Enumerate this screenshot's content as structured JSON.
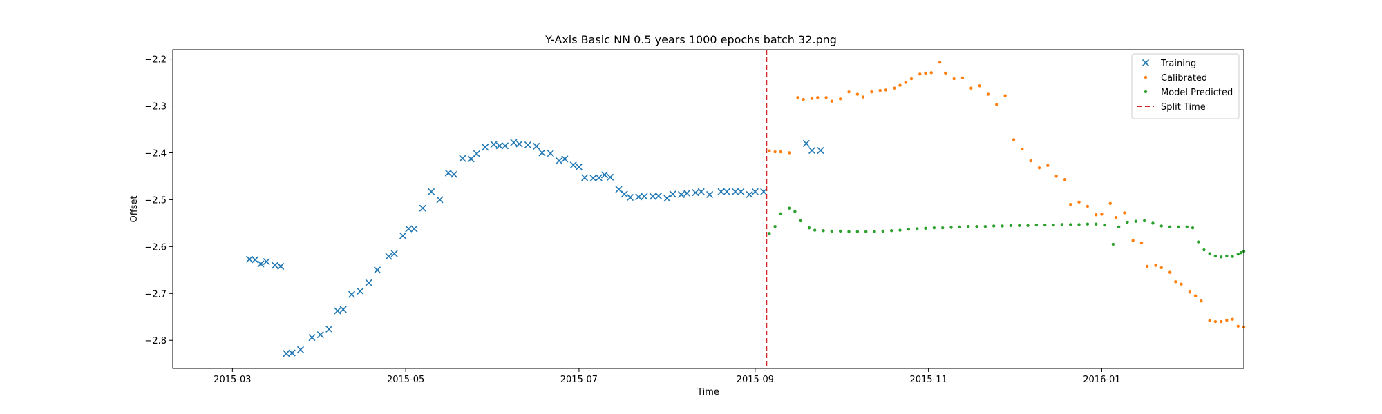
{
  "chart_data": {
    "type": "scatter",
    "title": "Y-Axis Basic NN 0.5 years 1000 epochs batch 32.png",
    "xlabel": "Time",
    "ylabel": "Offset",
    "xlim": [
      "2015-02-08",
      "2016-02-20"
    ],
    "ylim": [
      -2.86,
      -2.18
    ],
    "x_ticks": [
      "2015-03-01",
      "2015-05-01",
      "2015-07-01",
      "2015-09-01",
      "2015-11-01",
      "2016-01-01"
    ],
    "x_tick_labels": [
      "2015-03",
      "2015-05",
      "2015-07",
      "2015-09",
      "2015-11",
      "2016-01"
    ],
    "y_ticks": [
      -2.8,
      -2.7,
      -2.6,
      -2.5,
      -2.4,
      -2.3,
      -2.2
    ],
    "y_tick_labels": [
      "−2.8",
      "−2.7",
      "−2.6",
      "−2.5",
      "−2.4",
      "−2.3",
      "−2.2"
    ],
    "grid": false,
    "legend_position": "top-right",
    "split_time": "2015-09-05",
    "series": [
      {
        "name": "Training",
        "marker": "x",
        "color": "#1f77b4",
        "points": [
          [
            "2015-03-07",
            -2.627
          ],
          [
            "2015-03-09",
            -2.628
          ],
          [
            "2015-03-11",
            -2.637
          ],
          [
            "2015-03-13",
            -2.632
          ],
          [
            "2015-03-16",
            -2.64
          ],
          [
            "2015-03-18",
            -2.642
          ],
          [
            "2015-03-20",
            -2.828
          ],
          [
            "2015-03-22",
            -2.827
          ],
          [
            "2015-03-25",
            -2.82
          ],
          [
            "2015-03-29",
            -2.794
          ],
          [
            "2015-04-01",
            -2.788
          ],
          [
            "2015-04-04",
            -2.776
          ],
          [
            "2015-04-07",
            -2.737
          ],
          [
            "2015-04-09",
            -2.734
          ],
          [
            "2015-04-12",
            -2.702
          ],
          [
            "2015-04-15",
            -2.695
          ],
          [
            "2015-04-18",
            -2.677
          ],
          [
            "2015-04-21",
            -2.65
          ],
          [
            "2015-04-25",
            -2.621
          ],
          [
            "2015-04-27",
            -2.615
          ],
          [
            "2015-04-30",
            -2.577
          ],
          [
            "2015-05-02",
            -2.562
          ],
          [
            "2015-05-04",
            -2.562
          ],
          [
            "2015-05-07",
            -2.518
          ],
          [
            "2015-05-10",
            -2.483
          ],
          [
            "2015-05-13",
            -2.5
          ],
          [
            "2015-05-16",
            -2.443
          ],
          [
            "2015-05-18",
            -2.446
          ],
          [
            "2015-05-21",
            -2.412
          ],
          [
            "2015-05-24",
            -2.413
          ],
          [
            "2015-05-26",
            -2.402
          ],
          [
            "2015-05-29",
            -2.388
          ],
          [
            "2015-06-01",
            -2.382
          ],
          [
            "2015-06-03",
            -2.385
          ],
          [
            "2015-06-05",
            -2.385
          ],
          [
            "2015-06-08",
            -2.378
          ],
          [
            "2015-06-10",
            -2.381
          ],
          [
            "2015-06-13",
            -2.383
          ],
          [
            "2015-06-16",
            -2.386
          ],
          [
            "2015-06-18",
            -2.4
          ],
          [
            "2015-06-21",
            -2.401
          ],
          [
            "2015-06-24",
            -2.417
          ],
          [
            "2015-06-26",
            -2.413
          ],
          [
            "2015-06-29",
            -2.426
          ],
          [
            "2015-07-01",
            -2.43
          ],
          [
            "2015-07-03",
            -2.453
          ],
          [
            "2015-07-06",
            -2.454
          ],
          [
            "2015-07-08",
            -2.453
          ],
          [
            "2015-07-10",
            -2.447
          ],
          [
            "2015-07-12",
            -2.452
          ],
          [
            "2015-07-15",
            -2.478
          ],
          [
            "2015-07-17",
            -2.488
          ],
          [
            "2015-07-19",
            -2.495
          ],
          [
            "2015-07-22",
            -2.494
          ],
          [
            "2015-07-24",
            -2.493
          ],
          [
            "2015-07-27",
            -2.493
          ],
          [
            "2015-07-29",
            -2.492
          ],
          [
            "2015-08-01",
            -2.497
          ],
          [
            "2015-08-03",
            -2.488
          ],
          [
            "2015-08-06",
            -2.489
          ],
          [
            "2015-08-08",
            -2.486
          ],
          [
            "2015-08-11",
            -2.485
          ],
          [
            "2015-08-13",
            -2.483
          ],
          [
            "2015-08-16",
            -2.489
          ],
          [
            "2015-08-20",
            -2.483
          ],
          [
            "2015-08-22",
            -2.483
          ],
          [
            "2015-08-25",
            -2.483
          ],
          [
            "2015-08-27",
            -2.483
          ],
          [
            "2015-08-30",
            -2.489
          ],
          [
            "2015-09-01",
            -2.483
          ],
          [
            "2015-09-04",
            -2.483
          ],
          [
            "2015-09-19",
            -2.38
          ],
          [
            "2015-09-21",
            -2.395
          ],
          [
            "2015-09-24",
            -2.395
          ]
        ]
      },
      {
        "name": "Calibrated",
        "marker": "dot",
        "color": "#ff7f0e",
        "points": [
          [
            "2015-09-06",
            -2.396
          ],
          [
            "2015-09-08",
            -2.398
          ],
          [
            "2015-09-10",
            -2.398
          ],
          [
            "2015-09-13",
            -2.4
          ],
          [
            "2015-09-16",
            -2.282
          ],
          [
            "2015-09-18",
            -2.286
          ],
          [
            "2015-09-21",
            -2.284
          ],
          [
            "2015-09-23",
            -2.282
          ],
          [
            "2015-09-26",
            -2.282
          ],
          [
            "2015-09-28",
            -2.29
          ],
          [
            "2015-10-01",
            -2.285
          ],
          [
            "2015-10-04",
            -2.27
          ],
          [
            "2015-10-07",
            -2.275
          ],
          [
            "2015-10-09",
            -2.281
          ],
          [
            "2015-10-12",
            -2.27
          ],
          [
            "2015-10-15",
            -2.267
          ],
          [
            "2015-10-17",
            -2.266
          ],
          [
            "2015-10-20",
            -2.262
          ],
          [
            "2015-10-22",
            -2.256
          ],
          [
            "2015-10-24",
            -2.25
          ],
          [
            "2015-10-26",
            -2.242
          ],
          [
            "2015-10-29",
            -2.232
          ],
          [
            "2015-10-31",
            -2.23
          ],
          [
            "2015-11-02",
            -2.229
          ],
          [
            "2015-11-05",
            -2.207
          ],
          [
            "2015-11-07",
            -2.23
          ],
          [
            "2015-11-10",
            -2.242
          ],
          [
            "2015-11-13",
            -2.24
          ],
          [
            "2015-11-16",
            -2.262
          ],
          [
            "2015-11-19",
            -2.257
          ],
          [
            "2015-11-22",
            -2.275
          ],
          [
            "2015-11-25",
            -2.297
          ],
          [
            "2015-11-28",
            -2.278
          ],
          [
            "2015-12-01",
            -2.372
          ],
          [
            "2015-12-04",
            -2.392
          ],
          [
            "2015-12-07",
            -2.417
          ],
          [
            "2015-12-10",
            -2.432
          ],
          [
            "2015-12-13",
            -2.427
          ],
          [
            "2015-12-16",
            -2.45
          ],
          [
            "2015-12-19",
            -2.457
          ],
          [
            "2015-12-21",
            -2.51
          ],
          [
            "2015-12-24",
            -2.505
          ],
          [
            "2015-12-27",
            -2.514
          ],
          [
            "2015-12-30",
            -2.532
          ],
          [
            "2016-01-01",
            -2.531
          ],
          [
            "2016-01-04",
            -2.508
          ],
          [
            "2016-01-06",
            -2.538
          ],
          [
            "2016-01-09",
            -2.528
          ],
          [
            "2016-01-12",
            -2.587
          ],
          [
            "2016-01-15",
            -2.592
          ],
          [
            "2016-01-17",
            -2.642
          ],
          [
            "2016-01-20",
            -2.64
          ],
          [
            "2016-01-22",
            -2.645
          ],
          [
            "2016-01-25",
            -2.655
          ],
          [
            "2016-01-27",
            -2.675
          ],
          [
            "2016-01-29",
            -2.68
          ],
          [
            "2016-02-01",
            -2.697
          ],
          [
            "2016-02-03",
            -2.705
          ],
          [
            "2016-02-05",
            -2.716
          ],
          [
            "2016-02-08",
            -2.758
          ],
          [
            "2016-02-10",
            -2.76
          ],
          [
            "2016-02-12",
            -2.76
          ],
          [
            "2016-02-14",
            -2.757
          ],
          [
            "2016-02-16",
            -2.755
          ],
          [
            "2016-02-18",
            -2.77
          ],
          [
            "2016-02-20",
            -2.772
          ]
        ]
      },
      {
        "name": "Model Predicted",
        "marker": "dot",
        "color": "#2ca02c",
        "points": [
          [
            "2015-09-06",
            -2.572
          ],
          [
            "2015-09-08",
            -2.557
          ],
          [
            "2015-09-10",
            -2.53
          ],
          [
            "2015-09-13",
            -2.518
          ],
          [
            "2015-09-15",
            -2.525
          ],
          [
            "2015-09-17",
            -2.545
          ],
          [
            "2015-09-20",
            -2.56
          ],
          [
            "2015-09-22",
            -2.565
          ],
          [
            "2015-09-25",
            -2.566
          ],
          [
            "2015-09-28",
            -2.567
          ],
          [
            "2015-10-01",
            -2.567
          ],
          [
            "2015-10-04",
            -2.568
          ],
          [
            "2015-10-07",
            -2.568
          ],
          [
            "2015-10-10",
            -2.568
          ],
          [
            "2015-10-13",
            -2.568
          ],
          [
            "2015-10-16",
            -2.567
          ],
          [
            "2015-10-19",
            -2.566
          ],
          [
            "2015-10-22",
            -2.565
          ],
          [
            "2015-10-25",
            -2.563
          ],
          [
            "2015-10-28",
            -2.562
          ],
          [
            "2015-10-31",
            -2.561
          ],
          [
            "2015-11-03",
            -2.56
          ],
          [
            "2015-11-06",
            -2.56
          ],
          [
            "2015-11-09",
            -2.559
          ],
          [
            "2015-11-12",
            -2.558
          ],
          [
            "2015-11-15",
            -2.557
          ],
          [
            "2015-11-18",
            -2.557
          ],
          [
            "2015-11-21",
            -2.557
          ],
          [
            "2015-11-24",
            -2.556
          ],
          [
            "2015-11-27",
            -2.556
          ],
          [
            "2015-11-30",
            -2.555
          ],
          [
            "2015-12-03",
            -2.555
          ],
          [
            "2015-12-06",
            -2.555
          ],
          [
            "2015-12-09",
            -2.554
          ],
          [
            "2015-12-12",
            -2.554
          ],
          [
            "2015-12-15",
            -2.554
          ],
          [
            "2015-12-18",
            -2.553
          ],
          [
            "2015-12-21",
            -2.553
          ],
          [
            "2015-12-24",
            -2.553
          ],
          [
            "2015-12-27",
            -2.552
          ],
          [
            "2015-12-30",
            -2.552
          ],
          [
            "2016-01-02",
            -2.554
          ],
          [
            "2016-01-05",
            -2.595
          ],
          [
            "2016-01-07",
            -2.558
          ],
          [
            "2016-01-10",
            -2.548
          ],
          [
            "2016-01-13",
            -2.546
          ],
          [
            "2016-01-16",
            -2.545
          ],
          [
            "2016-01-19",
            -2.55
          ],
          [
            "2016-01-22",
            -2.556
          ],
          [
            "2016-01-25",
            -2.558
          ],
          [
            "2016-01-28",
            -2.558
          ],
          [
            "2016-01-31",
            -2.558
          ],
          [
            "2016-02-02",
            -2.56
          ],
          [
            "2016-02-04",
            -2.59
          ],
          [
            "2016-02-06",
            -2.607
          ],
          [
            "2016-02-08",
            -2.615
          ],
          [
            "2016-02-10",
            -2.62
          ],
          [
            "2016-02-12",
            -2.622
          ],
          [
            "2016-02-14",
            -2.62
          ],
          [
            "2016-02-16",
            -2.621
          ],
          [
            "2016-02-18",
            -2.616
          ],
          [
            "2016-02-19",
            -2.613
          ],
          [
            "2016-02-20",
            -2.61
          ]
        ]
      }
    ],
    "legend": [
      {
        "label": "Training",
        "marker": "x",
        "color": "#1f77b4"
      },
      {
        "label": "Calibrated",
        "marker": "dot",
        "color": "#ff7f0e"
      },
      {
        "label": "Model Predicted",
        "marker": "dot",
        "color": "#2ca02c"
      },
      {
        "label": "Split Time",
        "marker": "dashed-line",
        "color": "#d62728"
      }
    ]
  }
}
